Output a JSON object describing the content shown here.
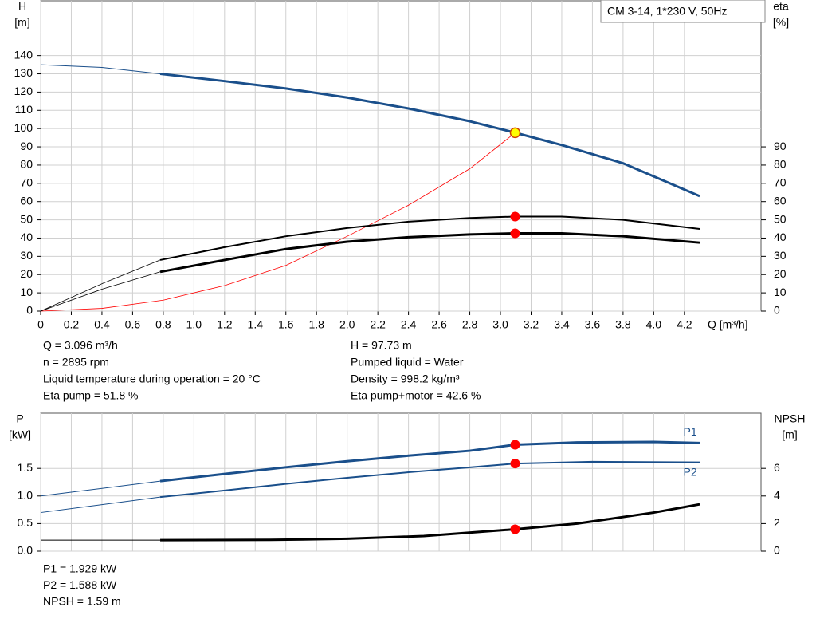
{
  "chart_data": [
    {
      "type": "line",
      "title": "CM 3-14, 1*230 V, 50Hz",
      "ylabel": "H",
      "yunit": "[m]",
      "y2label": "eta",
      "y2unit": "[%]",
      "xlabel": "Q [m³/h]",
      "xlim": [
        0,
        4.7
      ],
      "xticks": [
        0,
        0.2,
        0.4,
        0.6,
        0.8,
        {
          "value": 1,
          "label": "1.0"
        },
        1.2,
        1.4,
        1.6,
        1.8,
        {
          "value": 2,
          "label": "2.0"
        },
        2.2,
        2.4,
        2.6,
        2.8,
        {
          "value": 3,
          "label": "3.0"
        },
        3.2,
        3.4,
        3.6,
        3.8,
        {
          "value": 4,
          "label": "4.0"
        },
        4.2
      ],
      "ylim": [
        0,
        170
      ],
      "yticks": [
        0,
        10,
        20,
        30,
        40,
        50,
        60,
        70,
        80,
        90,
        100,
        110,
        120,
        130,
        140
      ],
      "y2lim": [
        0,
        170
      ],
      "y2ticks": [
        0,
        10,
        20,
        30,
        40,
        50,
        60,
        70,
        80,
        90
      ],
      "grid": true,
      "series": [
        {
          "color": "#1a4f8b",
          "width": 1,
          "x": [
            0,
            0.4,
            0.78
          ],
          "values": [
            135,
            133.5,
            130
          ]
        },
        {
          "color": "#1a4f8b",
          "width": 3,
          "x": [
            0.78,
            1.2,
            1.6,
            2.0,
            2.4,
            2.8,
            3.096,
            3.4,
            3.8,
            4.3
          ],
          "values": [
            130,
            126,
            122,
            117,
            111,
            104,
            97.73,
            91,
            81,
            63
          ]
        },
        {
          "color": "#ff0000",
          "width": 0.8,
          "x": [
            0,
            0.4,
            0.8,
            1.2,
            1.6,
            2.0,
            2.4,
            2.8,
            3.096
          ],
          "values": [
            0,
            1.5,
            6,
            14,
            25,
            41,
            58,
            78,
            97.73
          ]
        },
        {
          "color": "#000000",
          "width": 0.8,
          "axis": "y2",
          "x": [
            0,
            0.4,
            0.78
          ],
          "values": [
            0,
            15,
            28
          ]
        },
        {
          "color": "#000000",
          "width": 2,
          "axis": "y2",
          "x": [
            0.78,
            1.2,
            1.6,
            2.0,
            2.4,
            2.8,
            3.096,
            3.4,
            3.8,
            4.3
          ],
          "values": [
            28,
            35,
            41,
            45.5,
            49,
            51,
            51.8,
            51.8,
            50,
            45
          ]
        },
        {
          "color": "#000000",
          "width": 0.8,
          "axis": "y2",
          "x": [
            0,
            0.4,
            0.78
          ],
          "values": [
            0,
            12,
            21.5
          ]
        },
        {
          "color": "#000000",
          "width": 3,
          "axis": "y2",
          "x": [
            0.78,
            1.2,
            1.6,
            2.0,
            2.4,
            2.8,
            3.096,
            3.4,
            3.8,
            4.3
          ],
          "values": [
            21.5,
            28,
            34,
            38,
            40.5,
            42,
            42.6,
            42.6,
            41,
            37.5
          ]
        }
      ],
      "markers": [
        {
          "x": 3.096,
          "value": 97.73,
          "color": "#ffff00"
        },
        {
          "x": 3.096,
          "value": 51.8,
          "axis": "y2",
          "color": "#ff0000"
        },
        {
          "x": 3.096,
          "value": 42.6,
          "axis": "y2",
          "color": "#ff0000"
        }
      ],
      "info_left": [
        "Q = 3.096 m³/h",
        "n = 2895 rpm",
        "Liquid temperature during operation = 20 °C",
        "Eta pump = 51.8 %"
      ],
      "info_right": [
        "H = 97.73 m",
        "Pumped liquid = Water",
        "Density = 998.2 kg/m³",
        "Eta pump+motor = 42.6 %"
      ]
    },
    {
      "type": "line",
      "ylabel": "P",
      "yunit": "[kW]",
      "y2label": "NPSH",
      "y2unit": "[m]",
      "ylim": [
        0,
        2.5
      ],
      "yticks": [
        {
          "value": 0,
          "label": "0.0"
        },
        0.5,
        {
          "value": 1,
          "label": "1.0"
        },
        1.5
      ],
      "y2lim": [
        0,
        10
      ],
      "y2ticks": [
        0,
        2,
        4,
        6
      ],
      "grid": true,
      "series": [
        {
          "color": "#1a4f8b",
          "width": 1,
          "x": [
            0,
            0.78
          ],
          "values": [
            1.0,
            1.27
          ]
        },
        {
          "name": "P1",
          "color": "#1a4f8b",
          "width": 3,
          "x": [
            0.78,
            1.2,
            1.6,
            2.0,
            2.4,
            2.8,
            3.096,
            3.5,
            4.0,
            4.3
          ],
          "values": [
            1.27,
            1.4,
            1.52,
            1.63,
            1.73,
            1.82,
            1.929,
            1.97,
            1.98,
            1.96
          ]
        },
        {
          "color": "#1a4f8b",
          "width": 1,
          "x": [
            0,
            0.78
          ],
          "values": [
            0.7,
            0.98
          ]
        },
        {
          "name": "P2",
          "color": "#1a4f8b",
          "width": 2,
          "x": [
            0.78,
            1.2,
            1.6,
            2.0,
            2.4,
            2.8,
            3.096,
            3.6,
            4.3
          ],
          "values": [
            0.98,
            1.1,
            1.22,
            1.33,
            1.43,
            1.52,
            1.588,
            1.62,
            1.61
          ]
        },
        {
          "color": "#000000",
          "width": 1,
          "axis": "y2",
          "x": [
            0,
            0.78
          ],
          "values": [
            0.8,
            0.8
          ]
        },
        {
          "color": "#000000",
          "width": 3,
          "axis": "y2",
          "x": [
            0.78,
            1.5,
            2.0,
            2.5,
            3.096,
            3.5,
            4.0,
            4.3
          ],
          "values": [
            0.8,
            0.82,
            0.9,
            1.1,
            1.59,
            2.0,
            2.8,
            3.4
          ]
        }
      ],
      "markers": [
        {
          "x": 3.096,
          "value": 1.929,
          "color": "#ff0000"
        },
        {
          "x": 3.096,
          "value": 1.588,
          "color": "#ff0000"
        },
        {
          "x": 3.096,
          "value": 1.59,
          "axis": "y2",
          "color": "#ff0000"
        }
      ],
      "info_left": [
        "P1 = 1.929 kW",
        "P2 = 1.588 kW",
        "NPSH = 1.59 m"
      ]
    }
  ]
}
